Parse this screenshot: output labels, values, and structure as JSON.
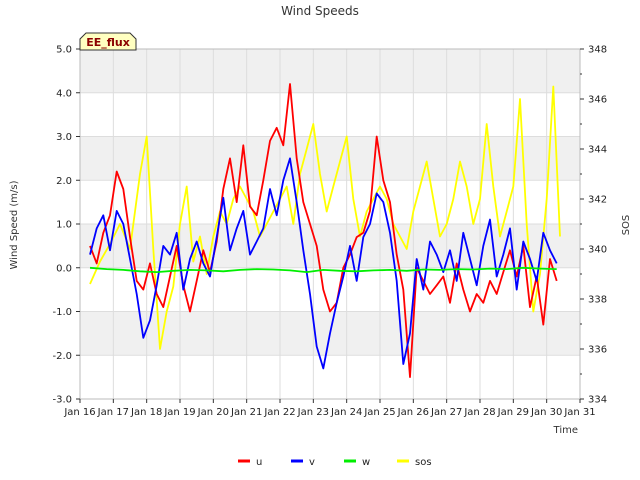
{
  "chart_data": {
    "type": "line",
    "title": "Wind Speeds",
    "xlabel": "Time",
    "ylabel": "Wind Speed (m/s)",
    "y2label": "SOS",
    "badge": "EE_flux",
    "ylim": [
      -3.0,
      5.0
    ],
    "y2lim": [
      334,
      348
    ],
    "xlim": [
      "2024-01-16",
      "2024-01-31"
    ],
    "y_ticks": [
      "-3.0",
      "-2.0",
      "-1.0",
      "0.0",
      "1.0",
      "2.0",
      "3.0",
      "4.0",
      "5.0"
    ],
    "y_tick_values": [
      -3,
      -2,
      -1,
      0,
      1,
      2,
      3,
      4,
      5
    ],
    "y2_ticks": [
      "334",
      "336",
      "338",
      "340",
      "342",
      "344",
      "346",
      "348"
    ],
    "y2_tick_values": [
      334,
      336,
      338,
      340,
      342,
      344,
      346,
      348
    ],
    "x_ticks": [
      "Jan 16",
      "Jan 17",
      "Jan 18",
      "Jan 19",
      "Jan 20",
      "Jan 21",
      "Jan 22",
      "Jan 23",
      "Jan 24",
      "Jan 25",
      "Jan 26",
      "Jan 27",
      "Jan 28",
      "Jan 29",
      "Jan 30",
      "Jan 31"
    ],
    "x_tick_values": [
      16,
      17,
      18,
      19,
      20,
      21,
      22,
      23,
      24,
      25,
      26,
      27,
      28,
      29,
      30,
      31
    ],
    "grid": true,
    "legend_position": "bottom-center",
    "colors": {
      "u": "#ff0000",
      "v": "#0000ff",
      "w": "#00ee00",
      "sos": "#ffff00"
    },
    "series": [
      {
        "name": "u",
        "axis": "left",
        "x": [
          16.3,
          16.5,
          16.7,
          16.9,
          17.1,
          17.3,
          17.5,
          17.7,
          17.9,
          18.1,
          18.3,
          18.5,
          18.7,
          18.9,
          19.1,
          19.3,
          19.5,
          19.7,
          19.9,
          20.1,
          20.3,
          20.5,
          20.7,
          20.9,
          21.1,
          21.3,
          21.5,
          21.7,
          21.9,
          22.1,
          22.3,
          22.5,
          22.7,
          22.9,
          23.1,
          23.3,
          23.5,
          23.7,
          23.9,
          24.1,
          24.3,
          24.5,
          24.7,
          24.9,
          25.1,
          25.3,
          25.5,
          25.7,
          25.9,
          26.1,
          26.3,
          26.5,
          26.7,
          26.9,
          27.1,
          27.3,
          27.5,
          27.7,
          27.9,
          28.1,
          28.3,
          28.5,
          28.7,
          28.9,
          29.1,
          29.3,
          29.5,
          29.7,
          29.9,
          30.1,
          30.3
        ],
        "y": [
          0.5,
          0.1,
          0.8,
          1.2,
          2.2,
          1.8,
          0.7,
          -0.3,
          -0.5,
          0.1,
          -0.6,
          -0.9,
          -0.2,
          0.5,
          -0.4,
          -1.0,
          -0.3,
          0.4,
          -0.1,
          0.6,
          1.8,
          2.5,
          1.5,
          2.8,
          1.4,
          1.2,
          2.0,
          2.9,
          3.2,
          2.8,
          4.2,
          2.5,
          1.5,
          1.0,
          0.5,
          -0.5,
          -1.0,
          -0.8,
          0.0,
          0.3,
          0.7,
          0.8,
          1.3,
          3.0,
          2.0,
          1.5,
          0.3,
          -0.5,
          -2.5,
          0.0,
          -0.3,
          -0.6,
          -0.4,
          -0.2,
          -0.8,
          0.1,
          -0.5,
          -1.0,
          -0.6,
          -0.8,
          -0.3,
          -0.6,
          -0.1,
          0.4,
          -0.2,
          0.5,
          -0.9,
          -0.2,
          -1.3,
          0.2,
          -0.3
        ]
      },
      {
        "name": "v",
        "axis": "left",
        "x": [
          16.3,
          16.5,
          16.7,
          16.9,
          17.1,
          17.3,
          17.5,
          17.7,
          17.9,
          18.1,
          18.3,
          18.5,
          18.7,
          18.9,
          19.1,
          19.3,
          19.5,
          19.7,
          19.9,
          20.1,
          20.3,
          20.5,
          20.7,
          20.9,
          21.1,
          21.3,
          21.5,
          21.7,
          21.9,
          22.1,
          22.3,
          22.5,
          22.7,
          22.9,
          23.1,
          23.3,
          23.5,
          23.7,
          23.9,
          24.1,
          24.3,
          24.5,
          24.7,
          24.9,
          25.1,
          25.3,
          25.5,
          25.7,
          25.9,
          26.1,
          26.3,
          26.5,
          26.7,
          26.9,
          27.1,
          27.3,
          27.5,
          27.7,
          27.9,
          28.1,
          28.3,
          28.5,
          28.7,
          28.9,
          29.1,
          29.3,
          29.5,
          29.7,
          29.9,
          30.1,
          30.3
        ],
        "y": [
          0.3,
          0.9,
          1.2,
          0.4,
          1.3,
          1.0,
          0.2,
          -0.6,
          -1.6,
          -1.2,
          -0.4,
          0.5,
          0.3,
          0.8,
          -0.5,
          0.2,
          0.6,
          0.1,
          -0.2,
          0.7,
          1.6,
          0.4,
          0.9,
          1.3,
          0.3,
          0.6,
          0.9,
          1.8,
          1.2,
          2.0,
          2.5,
          1.5,
          0.4,
          -0.6,
          -1.8,
          -2.3,
          -1.5,
          -0.8,
          -0.2,
          0.5,
          -0.3,
          0.7,
          1.0,
          1.7,
          1.5,
          0.8,
          -0.3,
          -2.2,
          -1.5,
          0.2,
          -0.5,
          0.6,
          0.3,
          -0.1,
          0.4,
          -0.3,
          0.8,
          0.2,
          -0.4,
          0.5,
          1.1,
          -0.2,
          0.3,
          0.9,
          -0.5,
          0.6,
          0.2,
          -0.3,
          0.8,
          0.4,
          0.1
        ]
      },
      {
        "name": "w",
        "axis": "left",
        "x": [
          16.3,
          16.8,
          17.3,
          17.8,
          18.3,
          18.8,
          19.3,
          19.8,
          20.3,
          20.8,
          21.3,
          21.8,
          22.3,
          22.8,
          23.3,
          23.8,
          24.3,
          24.8,
          25.3,
          25.8,
          26.3,
          26.8,
          27.3,
          27.8,
          28.3,
          28.8,
          29.3,
          29.8,
          30.3
        ],
        "y": [
          0.0,
          -0.03,
          -0.05,
          -0.08,
          -0.1,
          -0.07,
          -0.05,
          -0.06,
          -0.08,
          -0.05,
          -0.03,
          -0.04,
          -0.06,
          -0.1,
          -0.05,
          -0.07,
          -0.08,
          -0.06,
          -0.05,
          -0.07,
          -0.04,
          -0.05,
          -0.03,
          -0.04,
          -0.02,
          -0.03,
          0.0,
          -0.02,
          -0.03
        ]
      },
      {
        "name": "sos",
        "axis": "right",
        "x": [
          16.3,
          16.6,
          16.9,
          17.2,
          17.5,
          17.8,
          18.0,
          18.2,
          18.4,
          18.6,
          18.8,
          19.0,
          19.2,
          19.4,
          19.6,
          19.8,
          20.0,
          20.2,
          20.4,
          20.6,
          20.8,
          21.0,
          21.2,
          21.4,
          21.6,
          21.8,
          22.0,
          22.2,
          22.4,
          22.6,
          22.8,
          23.0,
          23.2,
          23.4,
          23.6,
          23.8,
          24.0,
          24.2,
          24.4,
          24.6,
          24.8,
          25.0,
          25.2,
          25.4,
          25.6,
          25.8,
          26.0,
          26.2,
          26.4,
          26.6,
          26.8,
          27.0,
          27.2,
          27.4,
          27.6,
          27.8,
          28.0,
          28.2,
          28.4,
          28.6,
          28.8,
          29.0,
          29.2,
          29.4,
          29.6,
          29.8,
          30.0,
          30.2,
          30.4
        ],
        "y": [
          338.6,
          339.5,
          340.2,
          341.0,
          340.0,
          343.0,
          344.5,
          340.0,
          336.0,
          337.5,
          338.5,
          341.0,
          342.5,
          339.5,
          340.5,
          339.0,
          340.5,
          341.5,
          341.0,
          342.0,
          342.5,
          342.0,
          341.5,
          340.5,
          341.0,
          341.5,
          342.0,
          342.5,
          341.0,
          343.0,
          344.0,
          345.0,
          343.0,
          341.5,
          342.5,
          343.5,
          344.5,
          342.0,
          340.5,
          341.5,
          342.0,
          342.5,
          342.0,
          341.0,
          340.5,
          340.0,
          341.5,
          342.5,
          343.5,
          342.0,
          340.5,
          341.0,
          342.0,
          343.5,
          342.5,
          341.0,
          342.0,
          345.0,
          342.5,
          340.5,
          341.5,
          342.5,
          346.0,
          341.0,
          337.5,
          339.0,
          342.0,
          346.5,
          340.5
        ]
      }
    ]
  }
}
